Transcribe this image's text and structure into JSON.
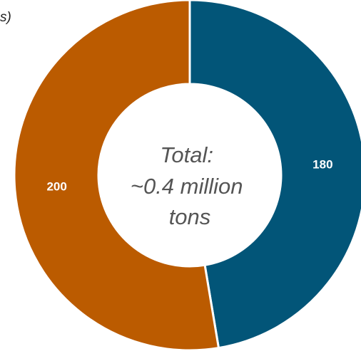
{
  "title_fragment": "s)",
  "chart_data": {
    "type": "pie",
    "variant": "donut",
    "categories": [
      "",
      ""
    ],
    "values": [
      180,
      200
    ],
    "data_labels": [
      "180",
      "200"
    ],
    "colors": [
      "#025578",
      "#bb5b00"
    ],
    "center_label": [
      "Total:",
      "~0.4 million",
      "tons"
    ],
    "legend": "none"
  }
}
